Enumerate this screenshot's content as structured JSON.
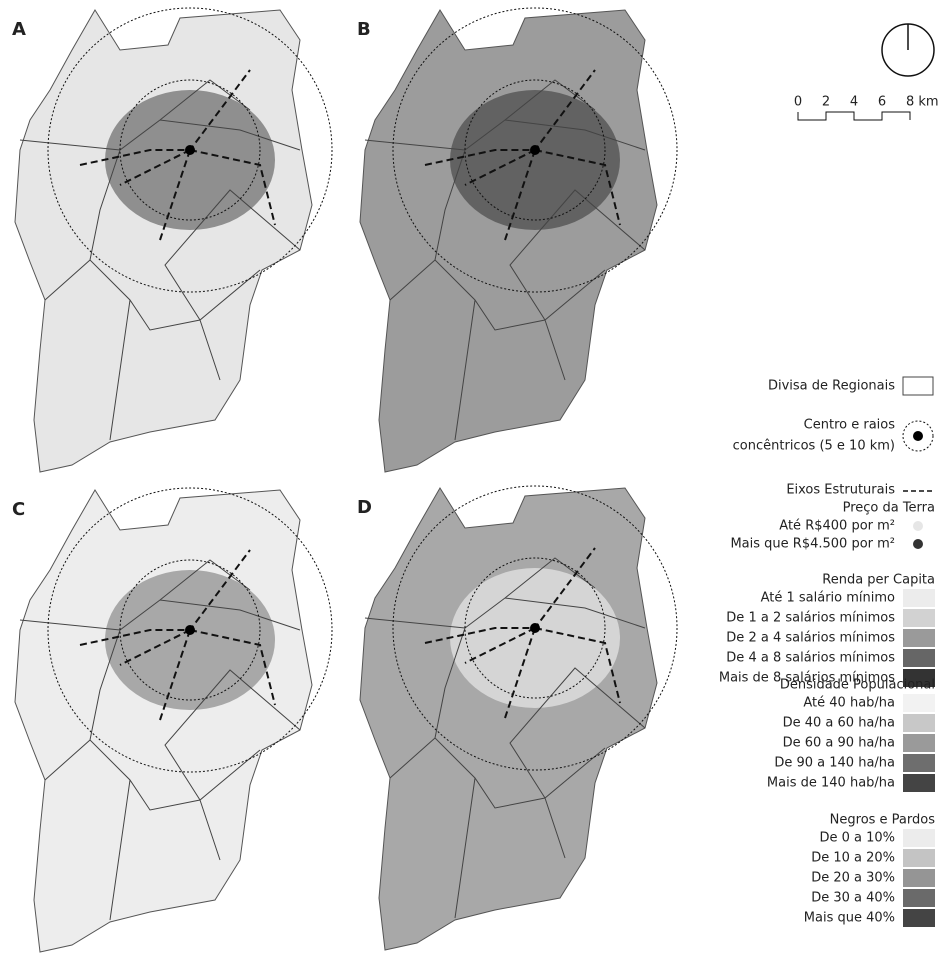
{
  "panels": [
    {
      "label": "A",
      "fill": "#e6e6e6",
      "core": "#6a6a6a"
    },
    {
      "label": "B",
      "fill": "#9c9c9c",
      "core": "#4a4a4a"
    },
    {
      "label": "C",
      "fill": "#ededed",
      "core": "#8a8a8a"
    },
    {
      "label": "D",
      "fill": "#a8a8a8",
      "core": "#e8e8e8"
    }
  ],
  "scale_bar": {
    "ticks": [
      "0",
      "2",
      "4",
      "6",
      "8 km"
    ]
  },
  "legend": {
    "boundaries": "Divisa de Regionais",
    "center": [
      "Centro e raios",
      "concêntricos (5 e 10 km)"
    ],
    "axes": "Eixos Estruturais",
    "groups": [
      {
        "title": "Preço da Terra",
        "shape": "dot",
        "items": [
          {
            "label": "Até R$400 por m²",
            "color": "#e6e6e6"
          },
          {
            "label": "Mais que R$4.500 por m²",
            "color": "#333333"
          }
        ]
      },
      {
        "title": "Renda per Capita",
        "shape": "box",
        "items": [
          {
            "label": "Até 1 salário mínimo",
            "color": "#ececec"
          },
          {
            "label": "De 1 a 2 salários mínimos",
            "color": "#d2d2d2"
          },
          {
            "label": "De 2 a 4 salários mínimos",
            "color": "#9a9a9a"
          },
          {
            "label": "De 4 a 8 salários mínimos",
            "color": "#666666"
          },
          {
            "label": "Mais de 8 salários mínimos",
            "color": "#333333"
          }
        ]
      },
      {
        "title": "Densidade Populacional",
        "shape": "box",
        "items": [
          {
            "label": "Até 40 hab/ha",
            "color": "#f2f2f2"
          },
          {
            "label": "De 40 a 60 ha/ha",
            "color": "#c8c8c8"
          },
          {
            "label": "De 60 a 90 ha/ha",
            "color": "#9a9a9a"
          },
          {
            "label": "De 90 a 140 ha/ha",
            "color": "#6e6e6e"
          },
          {
            "label": "Mais de 140 hab/ha",
            "color": "#444444"
          }
        ]
      },
      {
        "title": "Negros e Pardos",
        "shape": "box",
        "items": [
          {
            "label": "De 0 a 10%",
            "color": "#ececec"
          },
          {
            "label": "De 10 a 20%",
            "color": "#c4c4c4"
          },
          {
            "label": "De 20 a 30%",
            "color": "#959595"
          },
          {
            "label": "De 30 a 40%",
            "color": "#6a6a6a"
          },
          {
            "label": "Mais que 40%",
            "color": "#444444"
          }
        ]
      }
    ]
  }
}
